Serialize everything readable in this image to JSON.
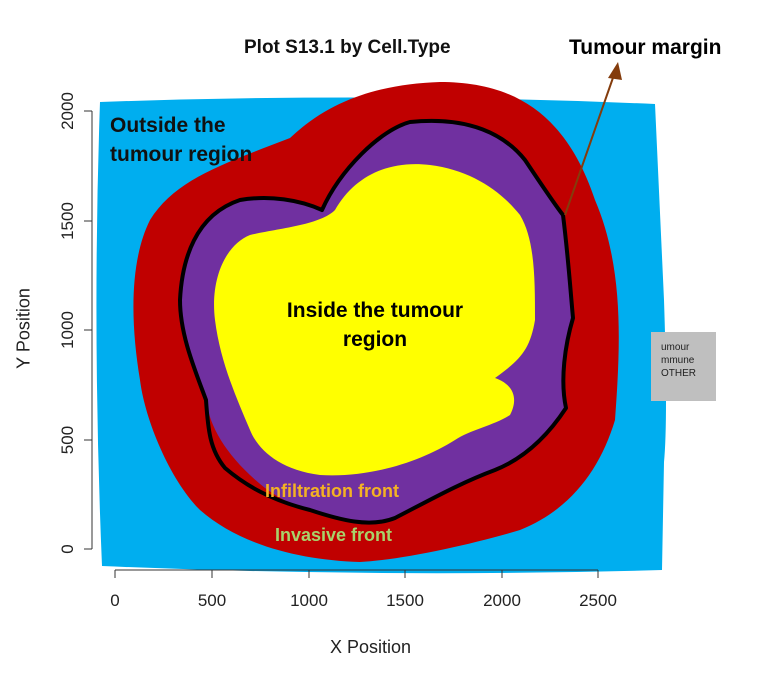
{
  "title": "Plot S13.1 by Cell.Type",
  "annotations": {
    "tumour_margin": "Tumour margin",
    "outside_line1": "Outside the",
    "outside_line2": "tumour region",
    "inside_line1": "Inside the tumour",
    "inside_line2": "region",
    "infiltration_front": "Infiltration front",
    "invasive_front": "Invasive front"
  },
  "axes": {
    "xlabel": "X Position",
    "ylabel": "Y Position",
    "x_ticks": [
      "0",
      "500",
      "1000",
      "1500",
      "2000",
      "2500"
    ],
    "y_ticks": [
      "0",
      "500",
      "1000",
      "1500",
      "2000"
    ]
  },
  "legend": {
    "items": [
      "umour",
      "mmune",
      "OTHER"
    ]
  },
  "colors": {
    "outside": "#00aeef",
    "invasive_front": "#c00000",
    "infiltration_front": "#7030a0",
    "inside": "#ffff00",
    "margin_line": "#000000",
    "arrow": "#843c0c"
  }
}
